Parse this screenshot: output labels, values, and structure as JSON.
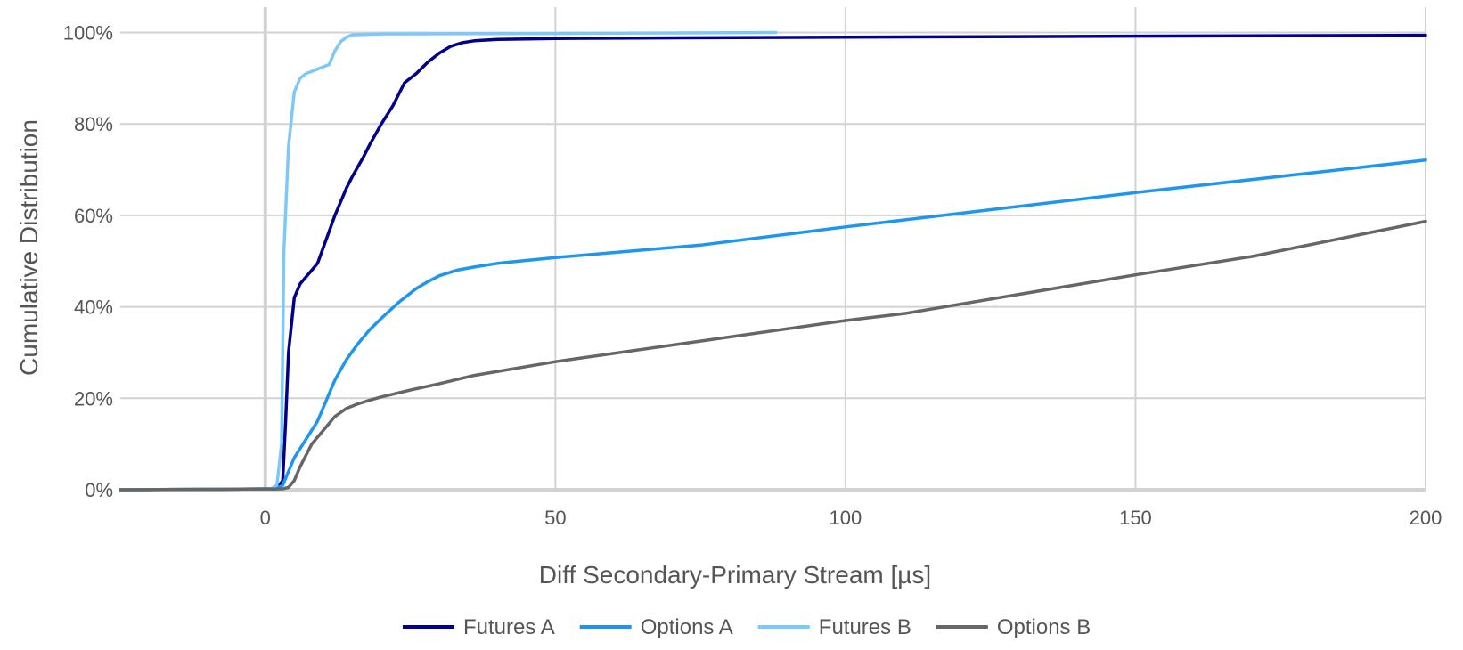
{
  "chart_data": {
    "type": "line",
    "title": "",
    "xlabel": "Diff Secondary-Primary Stream [µs]",
    "ylabel": "Cumulative Distribution",
    "xlim": [
      -25,
      200
    ],
    "ylim": [
      0,
      1.04
    ],
    "x_ticks": [
      0,
      50,
      100,
      150,
      200
    ],
    "x_tick_labels": [
      "0",
      "50",
      "100",
      "150",
      "200"
    ],
    "y_ticks": [
      0,
      0.2,
      0.4,
      0.6,
      0.8,
      1.0
    ],
    "y_tick_labels": [
      "0%",
      "20%",
      "40%",
      "60%",
      "80%",
      "100%"
    ],
    "grid": true,
    "legend_position": "bottom",
    "series": [
      {
        "name": "Futures A",
        "color": "#00008b",
        "points": [
          [
            -25,
            0
          ],
          [
            2,
            0.002
          ],
          [
            3,
            0.02
          ],
          [
            3.5,
            0.15
          ],
          [
            4,
            0.3
          ],
          [
            5,
            0.42
          ],
          [
            6,
            0.45
          ],
          [
            8,
            0.48
          ],
          [
            9,
            0.495
          ],
          [
            10,
            0.53
          ],
          [
            12,
            0.6
          ],
          [
            14,
            0.66
          ],
          [
            15,
            0.685
          ],
          [
            17,
            0.73
          ],
          [
            18,
            0.755
          ],
          [
            20,
            0.8
          ],
          [
            22,
            0.84
          ],
          [
            24,
            0.89
          ],
          [
            26,
            0.91
          ],
          [
            28,
            0.935
          ],
          [
            30,
            0.955
          ],
          [
            32,
            0.97
          ],
          [
            34,
            0.978
          ],
          [
            36,
            0.982
          ],
          [
            40,
            0.985
          ],
          [
            50,
            0.987
          ],
          [
            100,
            0.99
          ],
          [
            200,
            0.994
          ]
        ]
      },
      {
        "name": "Options A",
        "color": "#1e96f0",
        "points": [
          [
            -25,
            0
          ],
          [
            2,
            0.002
          ],
          [
            3,
            0.01
          ],
          [
            4,
            0.04
          ],
          [
            5,
            0.07
          ],
          [
            6,
            0.09
          ],
          [
            9,
            0.15
          ],
          [
            12,
            0.24
          ],
          [
            14,
            0.285
          ],
          [
            16,
            0.32
          ],
          [
            18,
            0.35
          ],
          [
            20,
            0.375
          ],
          [
            23,
            0.41
          ],
          [
            26,
            0.44
          ],
          [
            28,
            0.455
          ],
          [
            30,
            0.468
          ],
          [
            33,
            0.48
          ],
          [
            36,
            0.487
          ],
          [
            40,
            0.495
          ],
          [
            50,
            0.508
          ],
          [
            75,
            0.535
          ],
          [
            100,
            0.575
          ],
          [
            110,
            0.59
          ],
          [
            150,
            0.65
          ],
          [
            200,
            0.721
          ]
        ]
      },
      {
        "name": "Futures B",
        "color": "#7ec8f8",
        "points": [
          [
            -25,
            0
          ],
          [
            1,
            0.002
          ],
          [
            2,
            0.01
          ],
          [
            2.8,
            0.1
          ],
          [
            3.2,
            0.52
          ],
          [
            4,
            0.75
          ],
          [
            5,
            0.87
          ],
          [
            6,
            0.9
          ],
          [
            7,
            0.91
          ],
          [
            8,
            0.915
          ],
          [
            10,
            0.925
          ],
          [
            11,
            0.93
          ],
          [
            12,
            0.96
          ],
          [
            13,
            0.98
          ],
          [
            14,
            0.99
          ],
          [
            15,
            0.995
          ],
          [
            20,
            0.997
          ],
          [
            50,
            0.998
          ],
          [
            88,
            1.0
          ]
        ]
      },
      {
        "name": "Options B",
        "color": "#666666",
        "points": [
          [
            -25,
            0
          ],
          [
            3,
            0.002
          ],
          [
            4,
            0.005
          ],
          [
            5,
            0.02
          ],
          [
            6,
            0.05
          ],
          [
            8,
            0.1
          ],
          [
            10,
            0.13
          ],
          [
            12,
            0.16
          ],
          [
            14,
            0.178
          ],
          [
            16,
            0.188
          ],
          [
            18,
            0.196
          ],
          [
            20,
            0.203
          ],
          [
            25,
            0.218
          ],
          [
            30,
            0.232
          ],
          [
            36,
            0.25
          ],
          [
            50,
            0.28
          ],
          [
            75,
            0.325
          ],
          [
            100,
            0.37
          ],
          [
            110,
            0.385
          ],
          [
            150,
            0.47
          ],
          [
            170,
            0.51
          ],
          [
            200,
            0.587
          ]
        ]
      }
    ]
  }
}
